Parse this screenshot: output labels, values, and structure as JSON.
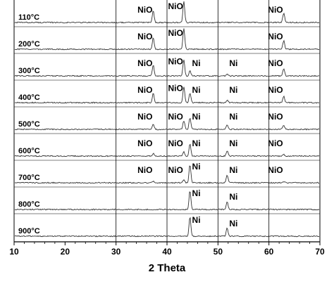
{
  "chart_data": {
    "type": "line",
    "xlabel": "2 Theta",
    "ylabel": "",
    "xlim": [
      10,
      70
    ],
    "x_ticks": [
      10,
      20,
      30,
      40,
      50,
      60,
      70
    ],
    "x_gridlines": [
      30,
      40,
      50,
      60
    ],
    "series": [
      {
        "name": "110°C",
        "peaks": [
          {
            "x": 37.3,
            "h": 0.55,
            "label": "NiO"
          },
          {
            "x": 43.3,
            "h": 1.0,
            "label": "NiO"
          },
          {
            "x": 62.9,
            "h": 0.45,
            "label": "NiO"
          }
        ]
      },
      {
        "name": "200°C",
        "peaks": [
          {
            "x": 37.3,
            "h": 0.55,
            "label": "NiO"
          },
          {
            "x": 43.3,
            "h": 1.0,
            "label": "NiO"
          },
          {
            "x": 62.9,
            "h": 0.4,
            "label": "NiO"
          }
        ]
      },
      {
        "name": "300°C",
        "peaks": [
          {
            "x": 37.3,
            "h": 0.5,
            "label": "NiO"
          },
          {
            "x": 43.3,
            "h": 0.75,
            "label": "NiO"
          },
          {
            "x": 44.5,
            "h": 0.25,
            "label": "Ni"
          },
          {
            "x": 51.8,
            "h": 0.08,
            "label": "Ni"
          },
          {
            "x": 62.9,
            "h": 0.35,
            "label": "NiO"
          }
        ]
      },
      {
        "name": "400°C",
        "peaks": [
          {
            "x": 37.3,
            "h": 0.45,
            "label": "NiO"
          },
          {
            "x": 43.3,
            "h": 0.75,
            "label": "NiO"
          },
          {
            "x": 44.5,
            "h": 0.45,
            "label": "Ni"
          },
          {
            "x": 51.8,
            "h": 0.12,
            "label": "Ni"
          },
          {
            "x": 62.9,
            "h": 0.3,
            "label": "NiO"
          }
        ]
      },
      {
        "name": "500°C",
        "peaks": [
          {
            "x": 37.3,
            "h": 0.25,
            "label": "NiO"
          },
          {
            "x": 43.3,
            "h": 0.4,
            "label": "NiO"
          },
          {
            "x": 44.5,
            "h": 0.55,
            "label": "Ni"
          },
          {
            "x": 51.8,
            "h": 0.2,
            "label": "Ni"
          },
          {
            "x": 62.9,
            "h": 0.2,
            "label": "NiO"
          }
        ]
      },
      {
        "name": "600°C",
        "peaks": [
          {
            "x": 37.3,
            "h": 0.12,
            "label": "NiO"
          },
          {
            "x": 43.3,
            "h": 0.2,
            "label": "NiO"
          },
          {
            "x": 44.5,
            "h": 0.6,
            "label": "Ni"
          },
          {
            "x": 51.8,
            "h": 0.25,
            "label": "Ni"
          },
          {
            "x": 62.9,
            "h": 0.08,
            "label": "NiO"
          }
        ]
      },
      {
        "name": "700°C",
        "peaks": [
          {
            "x": 37.3,
            "h": 0.08,
            "label": "NiO"
          },
          {
            "x": 43.3,
            "h": 0.15,
            "label": "NiO"
          },
          {
            "x": 44.5,
            "h": 0.85,
            "label": "Ni"
          },
          {
            "x": 51.8,
            "h": 0.35,
            "label": "Ni"
          },
          {
            "x": 62.9,
            "h": 0.05,
            "label": "NiO"
          }
        ]
      },
      {
        "name": "800°C",
        "peaks": [
          {
            "x": 44.5,
            "h": 0.9,
            "label": "Ni"
          },
          {
            "x": 51.8,
            "h": 0.38,
            "label": "Ni"
          }
        ]
      },
      {
        "name": "900°C",
        "peaks": [
          {
            "x": 44.5,
            "h": 0.9,
            "label": "Ni"
          },
          {
            "x": 51.8,
            "h": 0.38,
            "label": "Ni"
          }
        ]
      }
    ]
  }
}
